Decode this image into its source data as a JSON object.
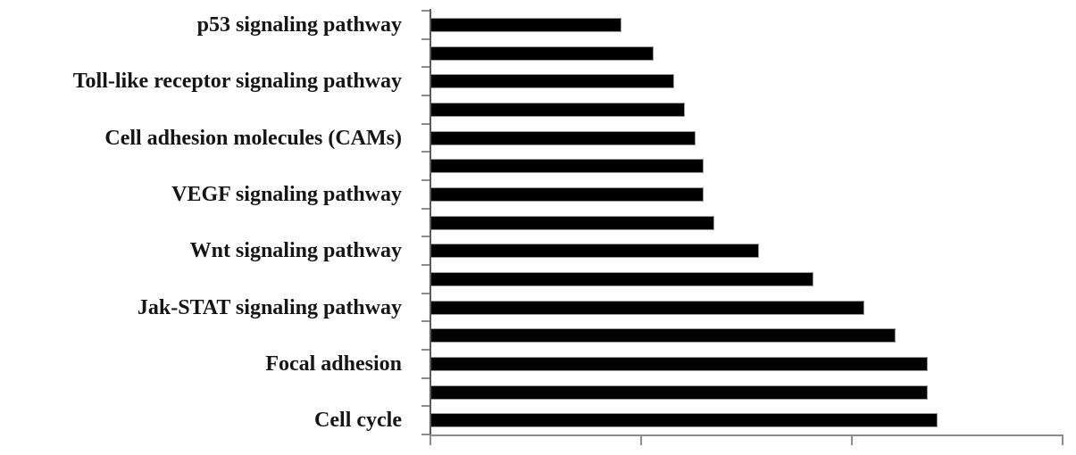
{
  "chart_data": {
    "type": "bar",
    "orientation": "horizontal",
    "title": "",
    "xlabel": "",
    "ylabel": "",
    "categories": [
      "p53 signaling pathway",
      "",
      "Toll-like receptor signaling pathway",
      "",
      "Cell adhesion molecules (CAMs)",
      "",
      "VEGF signaling pathway",
      "",
      "Wnt signaling pathway",
      "",
      "Jak-STAT signaling pathway",
      "",
      "Focal adhesion",
      "",
      "Cell cycle"
    ],
    "values": [
      0.9,
      1.05,
      1.15,
      1.2,
      1.25,
      1.29,
      1.29,
      1.34,
      1.55,
      1.81,
      2.05,
      2.2,
      2.35,
      2.35,
      2.4
    ],
    "xlim": [
      0,
      3
    ],
    "x_ticks": [
      0,
      1,
      2,
      3
    ],
    "x_tick_labels": [
      "",
      "",
      "",
      ""
    ],
    "x_tick_labels_visible": false,
    "y_tick_marks": "category-boundaries",
    "legend": "none",
    "grid": false,
    "bar_color": "#000000",
    "axis_color": "#8c8c8c",
    "label_color": "#151515"
  }
}
